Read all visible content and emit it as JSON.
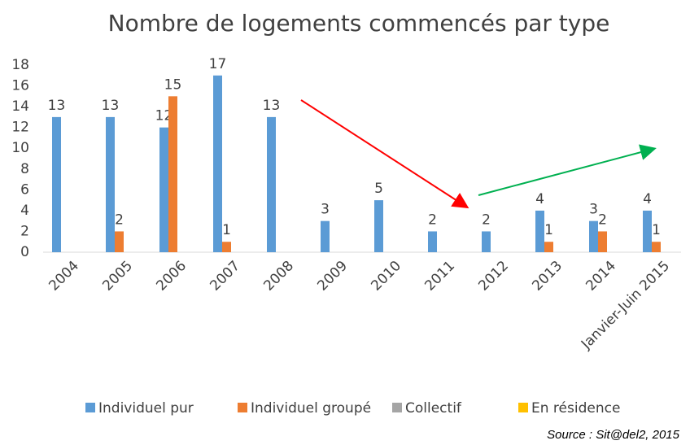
{
  "chart_data": {
    "type": "bar",
    "title": "Nombre de logements commencés par type",
    "categories": [
      "2004",
      "2005",
      "2006",
      "2007",
      "2008",
      "2009",
      "2010",
      "2011",
      "2012",
      "2013",
      "2014",
      "Janvier-Juin 2015"
    ],
    "series": [
      {
        "name": "Individuel pur",
        "color": "#5b9bd5",
        "values": [
          13,
          13,
          12,
          17,
          13,
          3,
          5,
          2,
          2,
          4,
          3,
          4
        ]
      },
      {
        "name": "Individuel groupé",
        "color": "#ed7d31",
        "values": [
          null,
          2,
          15,
          1,
          null,
          null,
          null,
          null,
          null,
          1,
          2,
          1
        ]
      },
      {
        "name": "Collectif",
        "color": "#a5a5a5",
        "values": [
          null,
          null,
          null,
          null,
          null,
          null,
          null,
          null,
          null,
          null,
          null,
          null
        ]
      },
      {
        "name": "En résidence",
        "color": "#ffc000",
        "values": [
          null,
          null,
          null,
          null,
          null,
          null,
          null,
          null,
          null,
          null,
          null,
          null
        ]
      }
    ],
    "ylim": [
      0,
      18
    ],
    "yticks": [
      0,
      2,
      4,
      6,
      8,
      10,
      12,
      14,
      16,
      18
    ],
    "grid": false,
    "legend": "bottom",
    "source": "Source : Sit@del2, 2015"
  }
}
